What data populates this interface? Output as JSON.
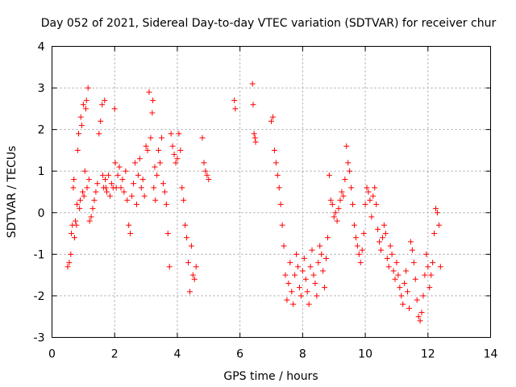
{
  "chart_data": {
    "type": "scatter",
    "title": "Day 052 of 2021, Sidereal Day-to-day VTEC variation (SDTVAR) for receiver chur",
    "xlabel": "GPS time / hours",
    "ylabel": "SDTVAR / TECUs",
    "xlim": [
      0,
      14
    ],
    "ylim": [
      -3,
      4
    ],
    "xticks": [
      "0",
      "2",
      "4",
      "6",
      "8",
      "10",
      "12",
      "14"
    ],
    "yticks": [
      "-3",
      "-2",
      "-1",
      "0",
      "1",
      "2",
      "3",
      "4"
    ],
    "grid": true,
    "marker": "+",
    "color": "#ff0000",
    "series": [
      {
        "name": "SDTVAR",
        "x": [
          0.5,
          0.55,
          0.6,
          0.62,
          0.65,
          0.68,
          0.7,
          0.72,
          0.75,
          0.78,
          0.8,
          0.82,
          0.85,
          0.88,
          0.9,
          0.92,
          0.95,
          0.98,
          1.0,
          1.02,
          1.05,
          1.08,
          1.1,
          1.12,
          1.15,
          1.18,
          1.2,
          1.25,
          1.3,
          1.35,
          1.4,
          1.45,
          1.5,
          1.55,
          1.6,
          1.62,
          1.65,
          1.68,
          1.7,
          1.72,
          1.75,
          1.8,
          1.85,
          1.9,
          1.95,
          2.0,
          2.02,
          2.05,
          2.1,
          2.15,
          2.2,
          2.25,
          2.3,
          2.35,
          2.4,
          2.45,
          2.5,
          2.55,
          2.6,
          2.65,
          2.7,
          2.75,
          2.8,
          2.85,
          2.9,
          2.95,
          3.0,
          3.05,
          3.1,
          3.15,
          3.2,
          3.22,
          3.25,
          3.28,
          3.3,
          3.35,
          3.4,
          3.45,
          3.5,
          3.55,
          3.6,
          3.65,
          3.7,
          3.75,
          3.8,
          3.85,
          3.9,
          3.95,
          4.0,
          4.05,
          4.1,
          4.15,
          4.2,
          4.25,
          4.3,
          4.35,
          4.4,
          4.45,
          4.5,
          4.55,
          4.6,
          4.8,
          4.85,
          4.9,
          4.95,
          5.0,
          5.82,
          5.85,
          6.4,
          6.42,
          6.45,
          6.48,
          6.5,
          7.0,
          7.05,
          7.1,
          7.15,
          7.2,
          7.25,
          7.3,
          7.35,
          7.4,
          7.45,
          7.5,
          7.55,
          7.6,
          7.65,
          7.7,
          7.75,
          7.8,
          7.85,
          7.9,
          7.95,
          8.0,
          8.05,
          8.1,
          8.15,
          8.2,
          8.25,
          8.3,
          8.35,
          8.4,
          8.45,
          8.5,
          8.55,
          8.6,
          8.65,
          8.7,
          8.75,
          8.8,
          8.85,
          8.9,
          8.95,
          9.0,
          9.05,
          9.1,
          9.15,
          9.2,
          9.25,
          9.3,
          9.35,
          9.4,
          9.45,
          9.5,
          9.55,
          9.6,
          9.65,
          9.7,
          9.75,
          9.8,
          9.85,
          9.9,
          9.95,
          10.0,
          10.05,
          10.1,
          10.15,
          10.2,
          10.25,
          10.3,
          10.35,
          10.4,
          10.45,
          10.5,
          10.55,
          10.6,
          10.65,
          10.7,
          10.75,
          10.8,
          10.85,
          10.9,
          10.95,
          11.0,
          11.05,
          11.1,
          11.15,
          11.2,
          11.25,
          11.3,
          11.35,
          11.4,
          11.45,
          11.5,
          11.55,
          11.6,
          11.65,
          11.7,
          11.75,
          11.8,
          11.85,
          11.9,
          11.95,
          12.0,
          12.05,
          12.1,
          12.15,
          12.2,
          12.25,
          12.3,
          12.35,
          12.4
        ],
        "y": [
          -1.3,
          -1.2,
          -1.0,
          -0.5,
          -0.3,
          0.6,
          0.8,
          -0.6,
          -0.2,
          -0.3,
          0.2,
          1.5,
          1.9,
          0.1,
          0.3,
          2.3,
          2.1,
          0.5,
          2.6,
          0.4,
          1.0,
          2.5,
          2.7,
          0.6,
          3.0,
          0.8,
          -0.2,
          -0.1,
          0.1,
          0.3,
          0.5,
          0.7,
          1.9,
          2.2,
          2.6,
          0.9,
          0.6,
          2.7,
          0.8,
          0.6,
          0.5,
          0.9,
          0.4,
          0.7,
          0.6,
          2.5,
          1.2,
          0.6,
          0.9,
          1.1,
          0.6,
          0.8,
          0.5,
          1.0,
          0.3,
          -0.3,
          -0.5,
          0.4,
          0.7,
          1.2,
          0.2,
          0.9,
          1.3,
          0.6,
          0.8,
          0.4,
          1.6,
          1.5,
          2.9,
          1.8,
          2.4,
          2.7,
          0.6,
          1.1,
          0.3,
          0.9,
          1.5,
          1.2,
          1.8,
          0.7,
          0.5,
          0.2,
          -0.5,
          -1.3,
          1.9,
          1.6,
          1.4,
          1.2,
          1.3,
          1.9,
          1.5,
          0.6,
          0.3,
          -0.3,
          -0.6,
          -1.2,
          -1.9,
          -0.8,
          -1.5,
          -1.6,
          -1.3,
          1.8,
          1.2,
          1.0,
          0.9,
          0.8,
          2.7,
          2.5,
          3.1,
          2.6,
          1.9,
          1.8,
          1.7,
          2.2,
          2.3,
          1.5,
          1.2,
          0.9,
          0.6,
          0.2,
          -0.3,
          -0.8,
          -1.5,
          -2.1,
          -1.7,
          -1.2,
          -1.9,
          -2.2,
          -1.5,
          -1.0,
          -1.3,
          -1.8,
          -2.0,
          -1.4,
          -1.1,
          -1.6,
          -1.9,
          -2.2,
          -1.3,
          -0.9,
          -1.5,
          -1.7,
          -2.0,
          -1.2,
          -0.8,
          -1.0,
          -1.4,
          -1.8,
          -1.1,
          -0.6,
          0.9,
          0.3,
          0.2,
          -0.1,
          0.0,
          -0.2,
          0.1,
          0.3,
          0.5,
          0.4,
          0.8,
          1.6,
          1.2,
          1.0,
          0.6,
          0.2,
          -0.3,
          -0.6,
          -0.8,
          -1.0,
          -1.2,
          -0.9,
          -0.5,
          0.2,
          0.6,
          0.5,
          0.3,
          -0.1,
          0.4,
          0.6,
          0.2,
          -0.4,
          -0.7,
          -0.9,
          -0.6,
          -0.3,
          -0.5,
          -1.1,
          -1.3,
          -0.8,
          -1.0,
          -1.4,
          -1.6,
          -1.2,
          -1.5,
          -1.8,
          -2.0,
          -2.2,
          -1.7,
          -1.4,
          -1.9,
          -2.3,
          -0.7,
          -0.9,
          -1.2,
          -1.6,
          -2.1,
          -2.5,
          -2.6,
          -2.4,
          -2.0,
          -1.5,
          -1.0,
          -1.3,
          -1.8,
          -1.5,
          -1.2,
          -0.5,
          0.1,
          0.0,
          -0.3,
          -1.3
        ]
      }
    ]
  }
}
